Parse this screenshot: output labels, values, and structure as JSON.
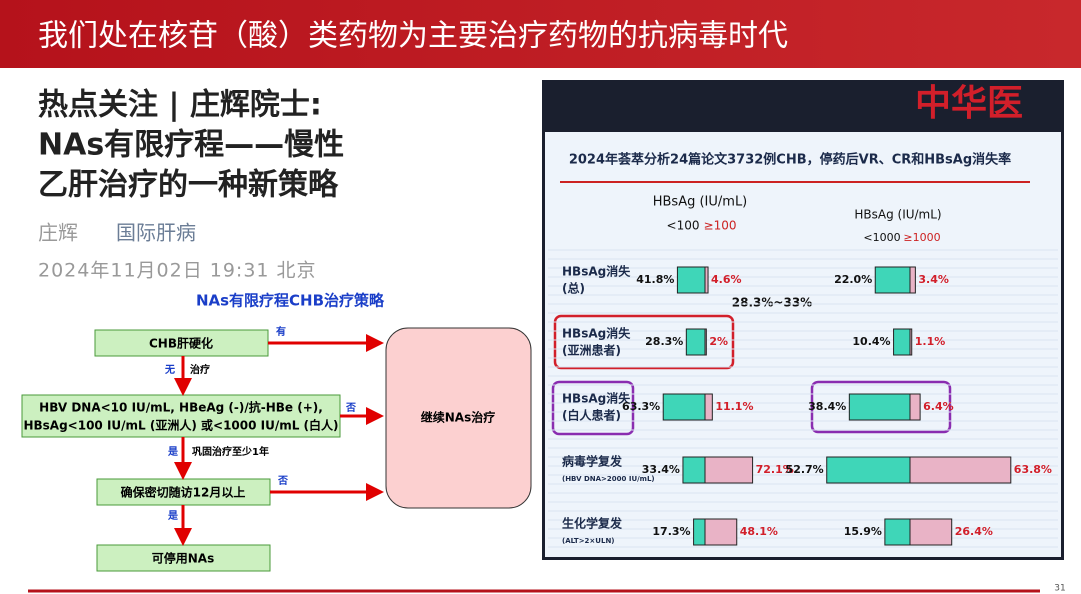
{
  "slide": {
    "title": "我们处在核苷（酸）类药物为主要治疗药物的抗病毒时代",
    "page_number": "31"
  },
  "article": {
    "title_lines": [
      "热点关注 | 庄辉院士:",
      "NAs有限疗程——慢性",
      "乙肝治疗的一种新策略"
    ],
    "author": "庄辉",
    "source": "国际肝病",
    "datetime": "2024年11月02日 19:31 北京"
  },
  "flowchart": {
    "title": "NAs有限疗程CHB治疗策略",
    "nodes": [
      {
        "lines": [
          "CHB肝硬化"
        ]
      },
      {
        "lines": [
          "HBV DNA<10 IU/mL, HBeAg (-)/抗-HBe (+),",
          "HBsAg<100 IU/mL (亚洲人) 或<1000 IU/mL (白人)"
        ]
      },
      {
        "lines": [
          "确保密切随访12月以上"
        ]
      },
      {
        "lines": [
          "可停用NAs"
        ]
      },
      {
        "lines": [
          "继续NAs治疗"
        ]
      }
    ],
    "edge_labels": [
      "有",
      "无",
      "治疗",
      "否",
      "是",
      "巩固治疗至少1年",
      "否",
      "是"
    ]
  },
  "chart_data": {
    "type": "bar",
    "banner": "中华医",
    "title": "2024年荟萃分析24篇论文3732例CHB，停药后VR、CR和HBsAg消失率",
    "panel_titles": [
      "HBsAg (IU/mL)",
      "HBsAg (IU/mL)"
    ],
    "annotation": "28.3%~33%",
    "categories": [
      [
        "HBsAg消失",
        "(总)"
      ],
      [
        "HBsAg消失",
        "(亚洲患者)"
      ],
      [
        "HBsAg消失",
        "(白人患者)"
      ],
      [
        "病毒学复发",
        "(HBV DNA>2000 IU/mL)"
      ],
      [
        "生化学复发",
        "(ALT>2×ULN)"
      ]
    ],
    "series": [
      {
        "name": "<100",
        "color": "#3fd6b8",
        "values": [
          41.8,
          28.3,
          63.3,
          33.4,
          17.3
        ],
        "value_labels": [
          "41.8%",
          "28.3%",
          "63.3%",
          "33.4%",
          "17.3%"
        ]
      },
      {
        "name": "≥100",
        "color": "#e9b3c6",
        "values": [
          4.6,
          2,
          11.1,
          72.1,
          48.1
        ],
        "value_labels": [
          "4.6%",
          "2%",
          "11.1%",
          "72.1%",
          "48.1%"
        ]
      },
      {
        "name": "<1000",
        "color": "#3fd6b8",
        "values": [
          22,
          10.4,
          38.4,
          52.7,
          15.9
        ],
        "value_labels": [
          "22.0%",
          "10.4%",
          "38.4%",
          "52.7%",
          "15.9%"
        ]
      },
      {
        "name": "≥1000",
        "color": "#e9b3c6",
        "values": [
          3.4,
          1.1,
          6.4,
          63.8,
          26.4
        ],
        "value_labels": [
          "3.4%",
          "1.1%",
          "6.4%",
          "63.8%",
          "26.4%"
        ]
      }
    ]
  }
}
